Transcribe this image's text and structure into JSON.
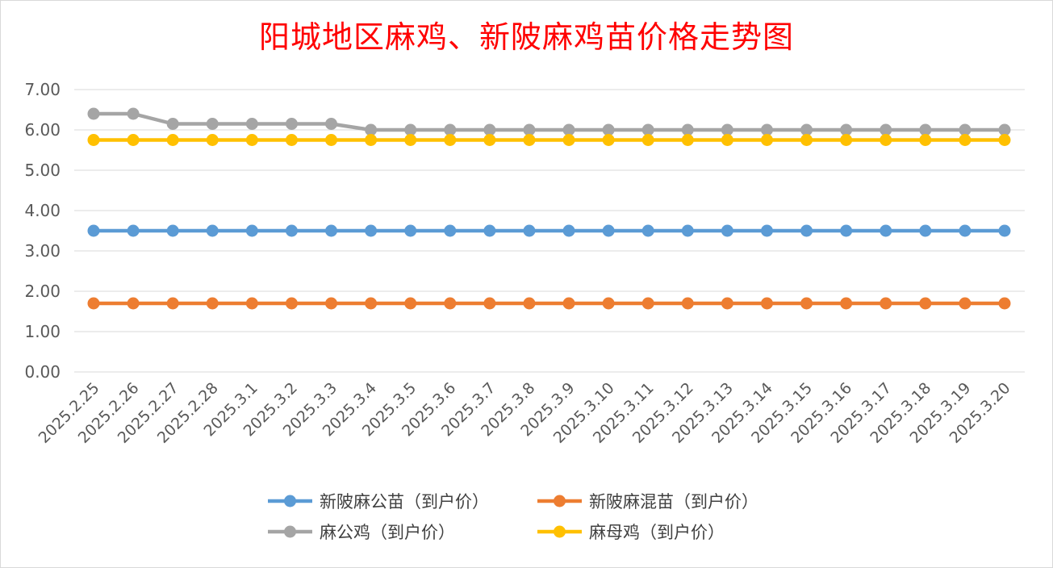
{
  "chart_data": {
    "type": "line",
    "title": "阳城地区麻鸡、新陂麻鸡苗价格走势图",
    "xlabel": "",
    "ylabel": "",
    "ylim": [
      0,
      7
    ],
    "y_ticks": [
      "0.00",
      "1.00",
      "2.00",
      "3.00",
      "4.00",
      "5.00",
      "6.00",
      "7.00"
    ],
    "grid": "horizontal",
    "legend_position": "bottom",
    "categories": [
      "2025.2.25",
      "2025.2.26",
      "2025.2.27",
      "2025.2.28",
      "2025.3.1",
      "2025.3.2",
      "2025.3.3",
      "2025.3.4",
      "2025.3.5",
      "2025.3.6",
      "2025.3.7",
      "2025.3.8",
      "2025.3.9",
      "2025.3.10",
      "2025.3.11",
      "2025.3.12",
      "2025.3.13",
      "2025.3.14",
      "2025.3.15",
      "2025.3.16",
      "2025.3.17",
      "2025.3.18",
      "2025.3.19",
      "2025.3.20"
    ],
    "series": [
      {
        "name": "新陂麻公苗（到户价）",
        "color": "#5b9bd5",
        "values": [
          3.5,
          3.5,
          3.5,
          3.5,
          3.5,
          3.5,
          3.5,
          3.5,
          3.5,
          3.5,
          3.5,
          3.5,
          3.5,
          3.5,
          3.5,
          3.5,
          3.5,
          3.5,
          3.5,
          3.5,
          3.5,
          3.5,
          3.5,
          3.5
        ]
      },
      {
        "name": "新陂麻混苗（到户价）",
        "color": "#ed7d31",
        "values": [
          1.7,
          1.7,
          1.7,
          1.7,
          1.7,
          1.7,
          1.7,
          1.7,
          1.7,
          1.7,
          1.7,
          1.7,
          1.7,
          1.7,
          1.7,
          1.7,
          1.7,
          1.7,
          1.7,
          1.7,
          1.7,
          1.7,
          1.7,
          1.7
        ]
      },
      {
        "name": "麻公鸡（到户价）",
        "color": "#a5a5a5",
        "values": [
          6.4,
          6.4,
          6.15,
          6.15,
          6.15,
          6.15,
          6.15,
          6.0,
          6.0,
          6.0,
          6.0,
          6.0,
          6.0,
          6.0,
          6.0,
          6.0,
          6.0,
          6.0,
          6.0,
          6.0,
          6.0,
          6.0,
          6.0,
          6.0
        ]
      },
      {
        "name": "麻母鸡（到户价）",
        "color": "#ffc000",
        "values": [
          5.75,
          5.75,
          5.75,
          5.75,
          5.75,
          5.75,
          5.75,
          5.75,
          5.75,
          5.75,
          5.75,
          5.75,
          5.75,
          5.75,
          5.75,
          5.75,
          5.75,
          5.75,
          5.75,
          5.75,
          5.75,
          5.75,
          5.75,
          5.75
        ]
      }
    ],
    "gridline_color": "#d9d9d9"
  }
}
